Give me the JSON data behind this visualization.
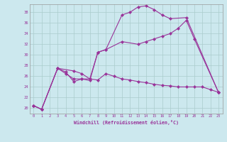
{
  "xlabel": "Windchill (Refroidissement éolien,°C)",
  "bg_color": "#cce8ee",
  "grid_color": "#aacccc",
  "line_color": "#993399",
  "xlim": [
    -0.5,
    23.5
  ],
  "ylim": [
    19,
    39.5
  ],
  "yticks": [
    20,
    22,
    24,
    26,
    28,
    30,
    32,
    34,
    36,
    38
  ],
  "xticks": [
    0,
    1,
    2,
    3,
    4,
    5,
    6,
    7,
    8,
    9,
    10,
    11,
    12,
    13,
    14,
    15,
    16,
    17,
    18,
    19,
    20,
    21,
    22,
    23
  ],
  "series1": {
    "x": [
      0,
      1,
      3,
      4,
      5,
      6,
      7,
      8,
      9,
      11,
      12,
      13,
      14,
      15,
      16,
      17,
      19,
      23
    ],
    "y": [
      20.5,
      19.8,
      27.5,
      26.8,
      25.0,
      25.5,
      25.2,
      30.5,
      31.0,
      37.5,
      38.0,
      39.0,
      39.2,
      38.5,
      37.5,
      36.8,
      37.0,
      23.0
    ]
  },
  "series2": {
    "x": [
      0,
      1,
      3,
      5,
      6,
      7,
      8,
      9,
      11,
      13,
      14,
      15,
      16,
      17,
      18,
      19,
      20,
      23
    ],
    "y": [
      20.5,
      19.8,
      27.5,
      27.0,
      26.5,
      25.5,
      30.5,
      31.0,
      32.5,
      32.0,
      32.5,
      33.0,
      33.5,
      34.0,
      35.0,
      36.5,
      33.0,
      23.0
    ]
  },
  "series3": {
    "x": [
      0,
      1,
      3,
      4,
      5,
      6,
      7,
      8,
      9,
      10,
      11,
      12,
      13,
      14,
      15,
      16,
      17,
      18,
      19,
      20,
      21,
      22,
      23
    ],
    "y": [
      20.5,
      19.8,
      27.5,
      26.5,
      25.5,
      25.5,
      25.5,
      25.3,
      26.5,
      26.0,
      25.5,
      25.3,
      25.0,
      24.8,
      24.5,
      24.3,
      24.2,
      24.0,
      24.0,
      24.0,
      24.0,
      23.5,
      23.0
    ]
  }
}
